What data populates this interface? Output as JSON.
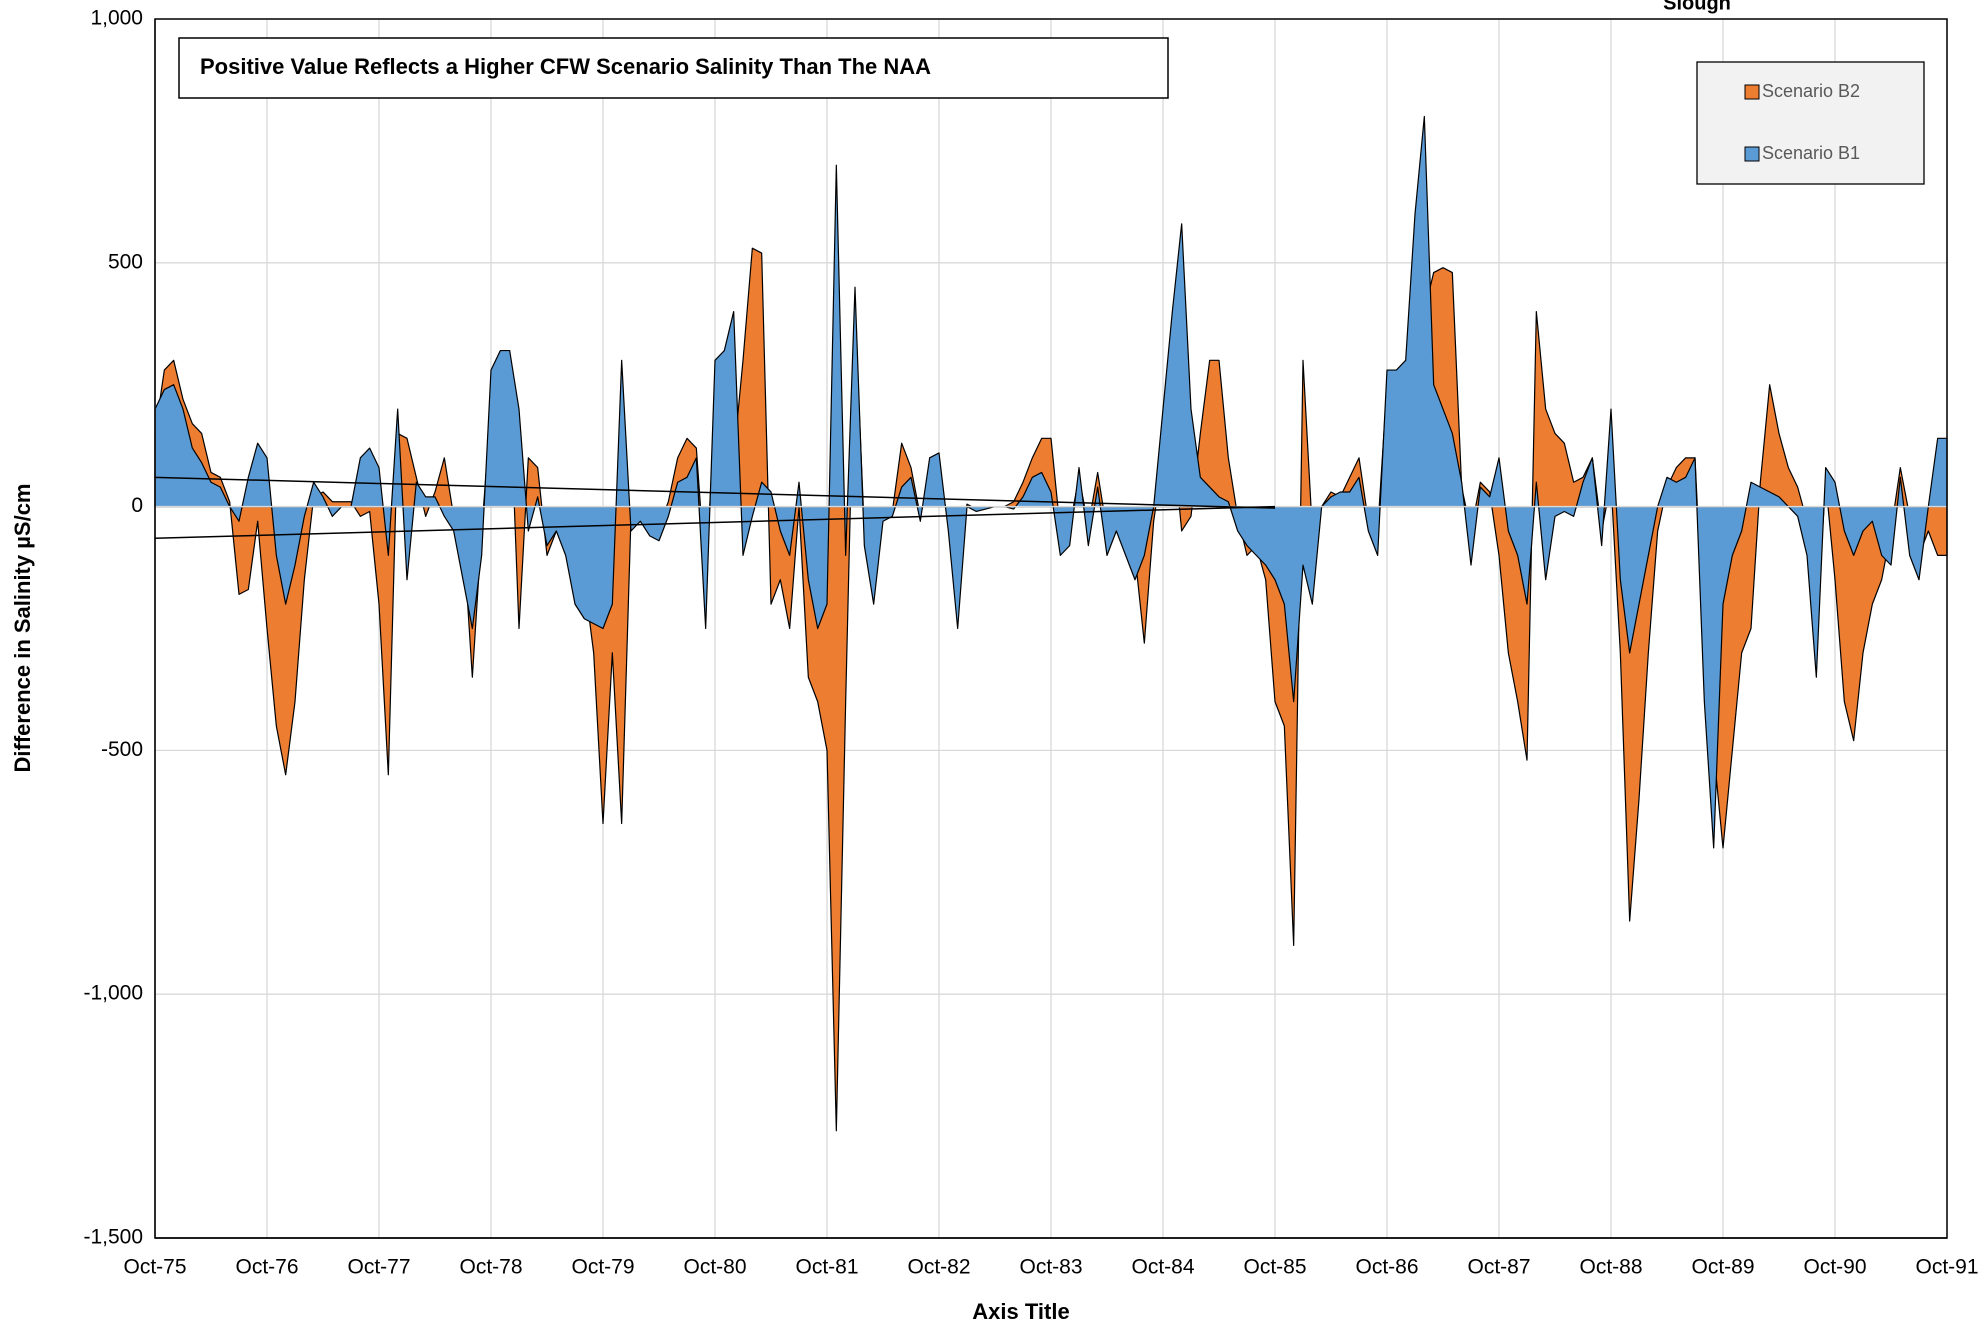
{
  "chart_data": {
    "type": "area",
    "title": "Slough",
    "annotation": "Positive Value Reflects a Higher CFW Scenario Salinity Than The NAA",
    "x_label": "Axis Title",
    "y_label": "Difference in Salinity µS/cm",
    "categories": [
      "Oct-75",
      null,
      null,
      null,
      null,
      null,
      null,
      null,
      null,
      null,
      null,
      null,
      "Oct-76",
      null,
      null,
      null,
      null,
      null,
      null,
      null,
      null,
      null,
      null,
      null,
      "Oct-77",
      null,
      null,
      null,
      null,
      null,
      null,
      null,
      null,
      null,
      null,
      null,
      "Oct-78",
      null,
      null,
      null,
      null,
      null,
      null,
      null,
      null,
      null,
      null,
      null,
      "Oct-79",
      null,
      null,
      null,
      null,
      null,
      null,
      null,
      null,
      null,
      null,
      null,
      "Oct-80",
      null,
      null,
      null,
      null,
      null,
      null,
      null,
      null,
      null,
      null,
      null,
      "Oct-81",
      null,
      null,
      null,
      null,
      null,
      null,
      null,
      null,
      null,
      null,
      null,
      "Oct-82",
      null,
      null,
      null,
      null,
      null,
      null,
      null,
      null,
      null,
      null,
      null,
      "Oct-83",
      null,
      null,
      null,
      null,
      null,
      null,
      null,
      null,
      null,
      null,
      null,
      "Oct-84",
      null,
      null,
      null,
      null,
      null,
      null,
      null,
      null,
      null,
      null,
      null,
      "Oct-85",
      null,
      null,
      null,
      null,
      null,
      null,
      null,
      null,
      null,
      null,
      null,
      "Oct-86",
      null,
      null,
      null,
      null,
      null,
      null,
      null,
      null,
      null,
      null,
      null,
      "Oct-87",
      null,
      null,
      null,
      null,
      null,
      null,
      null,
      null,
      null,
      null,
      null,
      "Oct-88",
      null,
      null,
      null,
      null,
      null,
      null,
      null,
      null,
      null,
      null,
      null,
      "Oct-89",
      null,
      null,
      null,
      null,
      null,
      null,
      null,
      null,
      null,
      null,
      null,
      "Oct-90",
      null,
      null,
      null,
      null,
      null,
      null,
      null,
      null,
      null,
      null,
      null,
      "Oct-91"
    ],
    "series": [
      {
        "name": "Scenario B2",
        "color": "#ed7d31",
        "values": [
          150,
          280,
          300,
          220,
          170,
          150,
          70,
          60,
          10,
          -180,
          -170,
          -30,
          -250,
          -450,
          -550,
          -400,
          -150,
          20,
          30,
          10,
          10,
          10,
          -20,
          -10,
          -200,
          -550,
          150,
          140,
          60,
          -20,
          30,
          100,
          -20,
          -50,
          -350,
          -50,
          200,
          250,
          250,
          -250,
          100,
          80,
          -100,
          -50,
          -30,
          -60,
          -150,
          -300,
          -650,
          -300,
          -650,
          -20,
          -10,
          -30,
          -40,
          10,
          100,
          140,
          120,
          -150,
          200,
          250,
          100,
          300,
          530,
          520,
          -200,
          -150,
          -250,
          0,
          -350,
          -400,
          -500,
          -1280,
          -400,
          400,
          -50,
          -80,
          -20,
          -10,
          130,
          80,
          -20,
          60,
          50,
          -20,
          -100,
          5,
          -5,
          0,
          0,
          0,
          10,
          50,
          100,
          140,
          140,
          -50,
          -40,
          60,
          -40,
          70,
          -50,
          -20,
          -50,
          -100,
          -280,
          -30,
          100,
          150,
          -50,
          -20,
          150,
          300,
          300,
          100,
          -20,
          -100,
          -80,
          -150,
          -400,
          -450,
          -900,
          300,
          -50,
          0,
          30,
          20,
          60,
          100,
          -30,
          -50,
          250,
          250,
          280,
          300,
          400,
          480,
          490,
          480,
          40,
          -50,
          50,
          30,
          -100,
          -300,
          -400,
          -520,
          400,
          200,
          150,
          130,
          50,
          60,
          100,
          -50,
          50,
          -300,
          -850,
          -600,
          -300,
          -50,
          40,
          80,
          100,
          100,
          -300,
          -500,
          -700,
          -500,
          -300,
          -250,
          50,
          250,
          150,
          80,
          40,
          -30,
          -250,
          50,
          -150,
          -400,
          -480,
          -300,
          -200,
          -150,
          -50,
          80,
          -20,
          -100,
          -50,
          -100,
          -100
        ]
      },
      {
        "name": "Scenario B1",
        "color": "#5b9bd5",
        "values": [
          200,
          240,
          250,
          200,
          120,
          90,
          50,
          40,
          0,
          -30,
          60,
          130,
          100,
          -100,
          -200,
          -120,
          -20,
          50,
          20,
          -20,
          0,
          0,
          100,
          120,
          80,
          -100,
          200,
          -150,
          50,
          20,
          20,
          -20,
          -50,
          -150,
          -250,
          -100,
          280,
          320,
          320,
          200,
          -50,
          20,
          -80,
          -50,
          -100,
          -200,
          -230,
          -240,
          -250,
          -200,
          300,
          -50,
          -30,
          -60,
          -70,
          -20,
          50,
          60,
          100,
          -250,
          300,
          320,
          400,
          -100,
          -20,
          50,
          30,
          -50,
          -100,
          50,
          -150,
          -250,
          -200,
          700,
          -100,
          450,
          -80,
          -200,
          -30,
          -20,
          40,
          60,
          -30,
          100,
          110,
          -50,
          -250,
          0,
          -10,
          -5,
          0,
          0,
          -5,
          20,
          60,
          70,
          30,
          -100,
          -80,
          80,
          -80,
          40,
          -100,
          -50,
          -100,
          -150,
          -100,
          0,
          200,
          400,
          580,
          200,
          60,
          40,
          20,
          10,
          -50,
          -80,
          -100,
          -120,
          -150,
          -200,
          -400,
          -120,
          -200,
          0,
          20,
          30,
          30,
          60,
          -50,
          -100,
          280,
          280,
          300,
          600,
          800,
          250,
          200,
          150,
          50,
          -120,
          40,
          20,
          100,
          -50,
          -100,
          -200,
          50,
          -150,
          -20,
          -10,
          -20,
          50,
          100,
          -80,
          200,
          -150,
          -300,
          -200,
          -100,
          0,
          60,
          50,
          60,
          100,
          -400,
          -700,
          -200,
          -100,
          -50,
          50,
          40,
          30,
          20,
          0,
          -20,
          -100,
          -350,
          80,
          50,
          -50,
          -100,
          -50,
          -30,
          -100,
          -120,
          60,
          -100,
          -150,
          0,
          140,
          140
        ]
      }
    ],
    "trendlines": [
      {
        "from": "Oct-75",
        "to": "Oct-85",
        "values": [
          60,
          -3
        ]
      },
      {
        "from": "Oct-75",
        "to": "Oct-85",
        "values": [
          -65,
          0
        ]
      }
    ],
    "ylim": [
      -1500,
      1000
    ],
    "yticks": [
      {
        "value": -1500,
        "label": "-1,500"
      },
      {
        "value": -1000,
        "label": "-1,000"
      },
      {
        "value": -500,
        "label": "-500"
      },
      0,
      500,
      {
        "value": 1000,
        "label": "1,000"
      }
    ],
    "grid": true,
    "legend": "top-right"
  }
}
